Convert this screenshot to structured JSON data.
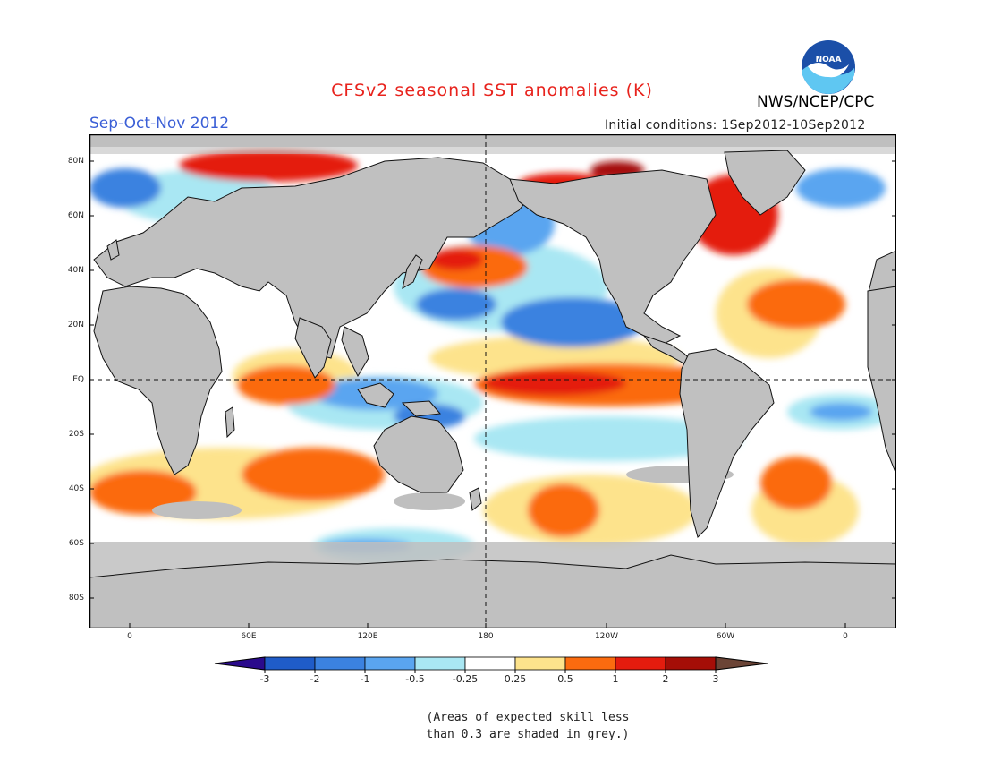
{
  "title": "CFSv2 seasonal SST anomalies (K)",
  "season": "Sep-Oct-Nov 2012",
  "agency": "NWS/NCEP/CPC",
  "logo_text": "NOAA",
  "initial_conditions": "Initial conditions: 1Sep2012-10Sep2012",
  "lat_labels": [
    "80N",
    "60N",
    "40N",
    "20N",
    "EQ",
    "20S",
    "40S",
    "60S",
    "80S"
  ],
  "lon_labels": [
    "0",
    "60E",
    "120E",
    "180",
    "120W",
    "60W",
    "0"
  ],
  "colorbar": {
    "labels": [
      "-3",
      "-2",
      "-1",
      "-0.5",
      "-0.25",
      "0.25",
      "0.5",
      "1",
      "2",
      "3"
    ],
    "colors": [
      "#2a0a8c",
      "#1f5cc8",
      "#3b82e0",
      "#5aa5f0",
      "#a9e7f3",
      "#ffffff",
      "#fde38c",
      "#fb6b0f",
      "#e41c0e",
      "#a50e07",
      "#6b4436"
    ]
  },
  "note": [
    "(Areas of expected skill less",
    "than 0.3 are shaded in grey.)"
  ],
  "colors": {
    "title": "#e8231d",
    "season": "#3b5fd6",
    "land": "#c0c0c0",
    "low_skill": "#bfbfbf"
  }
}
